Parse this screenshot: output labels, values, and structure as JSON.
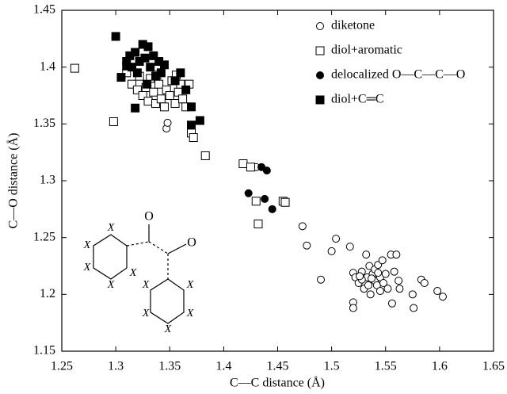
{
  "chart_data": {
    "type": "scatter",
    "xlabel": "C—C distance (Å)",
    "ylabel": "C—O distance (Å)",
    "xlim": [
      1.25,
      1.65
    ],
    "xticks": [
      1.25,
      1.3,
      1.35,
      1.4,
      1.45,
      1.5,
      1.55,
      1.6,
      1.65
    ],
    "ylim": [
      1.15,
      1.45
    ],
    "yticks": [
      1.15,
      1.2,
      1.25,
      1.3,
      1.35,
      1.4,
      1.45
    ],
    "legend": "upper right",
    "series": [
      {
        "name": "diketone",
        "marker": "circle",
        "filled": false,
        "color": "#000000",
        "x": [
          1.347,
          1.348,
          1.43,
          1.473,
          1.477,
          1.49,
          1.5,
          1.504,
          1.517,
          1.52,
          1.52,
          1.52,
          1.522,
          1.525,
          1.528,
          1.53,
          1.532,
          1.533,
          1.535,
          1.536,
          1.538,
          1.54,
          1.54,
          1.542,
          1.543,
          1.545,
          1.545,
          1.547,
          1.548,
          1.55,
          1.552,
          1.555,
          1.556,
          1.558,
          1.56,
          1.562,
          1.563,
          1.575,
          1.576,
          1.583,
          1.586,
          1.598,
          1.603,
          1.528,
          1.534,
          1.537,
          1.543,
          1.526
        ],
        "values": [
          1.346,
          1.351,
          1.312,
          1.26,
          1.243,
          1.213,
          1.238,
          1.249,
          1.242,
          1.219,
          1.193,
          1.188,
          1.215,
          1.21,
          1.22,
          1.205,
          1.235,
          1.215,
          1.225,
          1.2,
          1.218,
          1.212,
          1.222,
          1.208,
          1.226,
          1.215,
          1.203,
          1.23,
          1.21,
          1.218,
          1.205,
          1.235,
          1.192,
          1.22,
          1.235,
          1.212,
          1.205,
          1.2,
          1.188,
          1.213,
          1.21,
          1.203,
          1.198,
          1.213,
          1.208,
          1.214,
          1.219,
          1.216
        ]
      },
      {
        "name": "diol+aromatic",
        "marker": "square",
        "filled": false,
        "color": "#000000",
        "x": [
          1.262,
          1.298,
          1.31,
          1.315,
          1.32,
          1.322,
          1.325,
          1.328,
          1.33,
          1.332,
          1.335,
          1.337,
          1.34,
          1.342,
          1.345,
          1.347,
          1.35,
          1.352,
          1.355,
          1.358,
          1.36,
          1.362,
          1.365,
          1.368,
          1.37,
          1.372,
          1.383,
          1.418,
          1.425,
          1.43,
          1.432,
          1.455,
          1.457,
          1.338,
          1.356
        ],
        "values": [
          1.399,
          1.352,
          1.395,
          1.385,
          1.38,
          1.392,
          1.375,
          1.382,
          1.37,
          1.39,
          1.378,
          1.368,
          1.385,
          1.372,
          1.365,
          1.38,
          1.375,
          1.388,
          1.368,
          1.378,
          1.385,
          1.372,
          1.365,
          1.385,
          1.342,
          1.338,
          1.322,
          1.315,
          1.312,
          1.282,
          1.262,
          1.282,
          1.281,
          1.393,
          1.393
        ]
      },
      {
        "name": "delocalized O—C—C—O",
        "marker": "circle",
        "filled": true,
        "color": "#000000",
        "x": [
          1.423,
          1.435,
          1.44,
          1.438,
          1.445
        ],
        "values": [
          1.289,
          1.312,
          1.309,
          1.284,
          1.275
        ]
      },
      {
        "name": "diol+C═C",
        "marker": "square",
        "filled": true,
        "color": "#000000",
        "x": [
          1.3,
          1.305,
          1.31,
          1.313,
          1.315,
          1.318,
          1.32,
          1.322,
          1.325,
          1.327,
          1.329,
          1.33,
          1.332,
          1.335,
          1.337,
          1.34,
          1.342,
          1.345,
          1.318,
          1.36,
          1.365,
          1.37,
          1.37,
          1.378,
          1.355,
          1.31
        ],
        "values": [
          1.427,
          1.391,
          1.405,
          1.41,
          1.4,
          1.413,
          1.395,
          1.405,
          1.42,
          1.408,
          1.385,
          1.418,
          1.4,
          1.41,
          1.392,
          1.405,
          1.395,
          1.402,
          1.364,
          1.395,
          1.38,
          1.365,
          1.349,
          1.353,
          1.388,
          1.401
        ]
      }
    ],
    "inset_labels": [
      "O",
      "O",
      "X",
      "X",
      "X",
      "X",
      "X",
      "X",
      "X",
      "X",
      "X",
      "X"
    ]
  }
}
